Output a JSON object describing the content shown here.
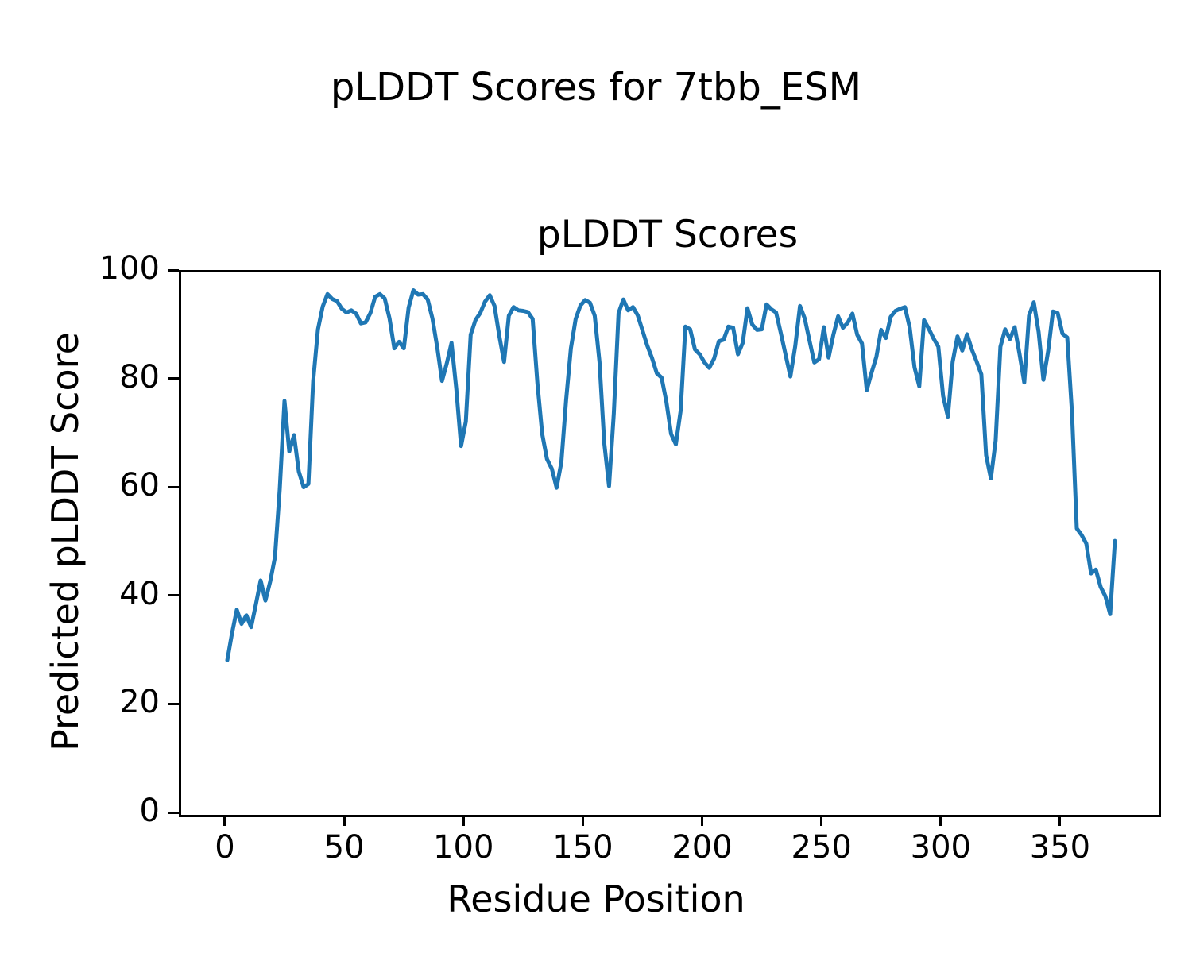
{
  "figure": {
    "title": "pLDDT Scores for 7tbb_ESM",
    "background_color": "#ffffff",
    "text_color": "#000000"
  },
  "chart_data": {
    "type": "line",
    "title": "pLDDT Scores",
    "xlabel": "Residue Position",
    "ylabel": "Predicted pLDDT Score",
    "xlim": [
      -19.3,
      390.3
    ],
    "ylim": [
      0,
      100
    ],
    "xticks": [
      0,
      50,
      100,
      150,
      200,
      250,
      300,
      350
    ],
    "yticks": [
      0,
      20,
      40,
      60,
      80,
      100
    ],
    "grid": false,
    "legend": "none",
    "series": [
      {
        "name": "pLDDT",
        "color": "#1f77b4",
        "line_width": 5,
        "x_start": 0,
        "x_step": 2,
        "y": [
          28.5,
          33.5,
          37.8,
          35.2,
          36.8,
          34.6,
          38.8,
          43.2,
          39.5,
          43.0,
          47.5,
          60.0,
          76.3,
          67.0,
          70.0,
          63.3,
          60.4,
          61.0,
          80.0,
          89.5,
          93.7,
          96.0,
          95.1,
          94.7,
          93.3,
          92.6,
          93.0,
          92.4,
          90.6,
          90.8,
          92.5,
          95.5,
          96.0,
          95.2,
          91.5,
          86.0,
          87.2,
          86.0,
          93.5,
          96.7,
          95.9,
          96.0,
          95.0,
          91.5,
          86.2,
          80.0,
          83.2,
          87.0,
          78.5,
          68.0,
          72.5,
          88.5,
          91.2,
          92.5,
          94.6,
          95.8,
          93.8,
          88.3,
          83.5,
          92.0,
          93.6,
          93.0,
          92.9,
          92.7,
          91.4,
          79.5,
          70.2,
          65.6,
          63.8,
          60.3,
          65.0,
          76.5,
          86.0,
          91.4,
          93.9,
          94.9,
          94.4,
          92.0,
          83.5,
          68.5,
          60.6,
          74.0,
          92.5,
          95.0,
          93.0,
          93.6,
          92.1,
          89.3,
          86.5,
          84.2,
          81.4,
          80.6,
          76.2,
          70.2,
          68.3,
          74.5,
          90.0,
          89.5,
          85.8,
          84.9,
          83.4,
          82.4,
          84.1,
          87.3,
          87.6,
          90.0,
          89.8,
          84.9,
          87.0,
          93.4,
          90.4,
          89.4,
          89.5,
          94.1,
          93.2,
          92.6,
          88.8,
          84.8,
          80.8,
          86.4,
          93.8,
          91.5,
          87.4,
          83.4,
          84.0,
          89.9,
          84.3,
          88.5,
          91.9,
          89.8,
          90.7,
          92.4,
          88.5,
          86.9,
          78.3,
          81.5,
          84.4,
          89.4,
          87.9,
          91.8,
          92.9,
          93.3,
          93.6,
          89.8,
          82.5,
          79.0,
          91.2,
          89.6,
          87.8,
          86.3,
          77.2,
          73.4,
          83.5,
          88.2,
          85.6,
          88.6,
          85.8,
          83.6,
          81.2,
          66.3,
          62.0,
          69.0,
          86.3,
          89.5,
          87.7,
          89.9,
          85.0,
          79.7,
          92.0,
          94.5,
          89.0,
          80.2,
          85.5,
          92.8,
          92.5,
          88.7,
          88.0,
          74.0,
          52.8,
          51.6,
          50.0,
          44.5,
          45.2,
          42.0,
          40.3,
          37.0,
          50.5
        ]
      }
    ]
  }
}
